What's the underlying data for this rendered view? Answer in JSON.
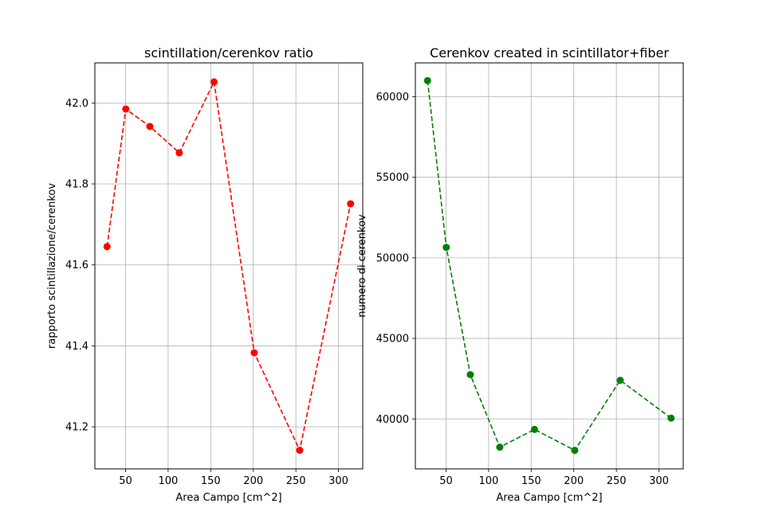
{
  "chart_data": [
    {
      "type": "line",
      "title": "scintillation/cerenkov ratio",
      "xlabel": "Area Campo [cm^2]",
      "ylabel": "rapporto scintillazione/cerenkov",
      "x": [
        28.3,
        50.3,
        78.5,
        113.1,
        153.9,
        201.1,
        254.5,
        314.2
      ],
      "series": [
        {
          "values": [
            41.645,
            41.985,
            41.942,
            41.877,
            42.052,
            41.383,
            41.142,
            41.751
          ]
        }
      ],
      "xlim": [
        14.0,
        328.5
      ],
      "ylim": [
        41.096,
        42.099
      ],
      "xticks": [
        50,
        100,
        150,
        200,
        250,
        300
      ],
      "yticks": [
        41.2,
        41.4,
        41.6,
        41.8,
        42.0
      ],
      "ytick_labels": [
        "41.2",
        "41.4",
        "41.6",
        "41.8",
        "42.0"
      ],
      "grid": true,
      "color": "#ff0000",
      "line_style": "dashed",
      "marker": "circle"
    },
    {
      "type": "line",
      "title": "Cerenkov created in scintillator+fiber",
      "xlabel": "Area Campo [cm^2]",
      "ylabel": "numero di cerenkov",
      "x": [
        28.3,
        50.3,
        78.5,
        113.1,
        153.9,
        201.1,
        254.5,
        314.2
      ],
      "series": [
        {
          "values": [
            61000,
            50650,
            42750,
            38250,
            39350,
            38050,
            42400,
            40050
          ]
        }
      ],
      "xlim": [
        14.0,
        328.5
      ],
      "ylim": [
        36900,
        62100
      ],
      "xticks": [
        50,
        100,
        150,
        200,
        250,
        300
      ],
      "yticks": [
        40000,
        45000,
        50000,
        55000,
        60000
      ],
      "ytick_labels": [
        "40000",
        "45000",
        "50000",
        "55000",
        "60000"
      ],
      "grid": true,
      "color": "#008000",
      "line_style": "dashed",
      "marker": "circle"
    }
  ]
}
